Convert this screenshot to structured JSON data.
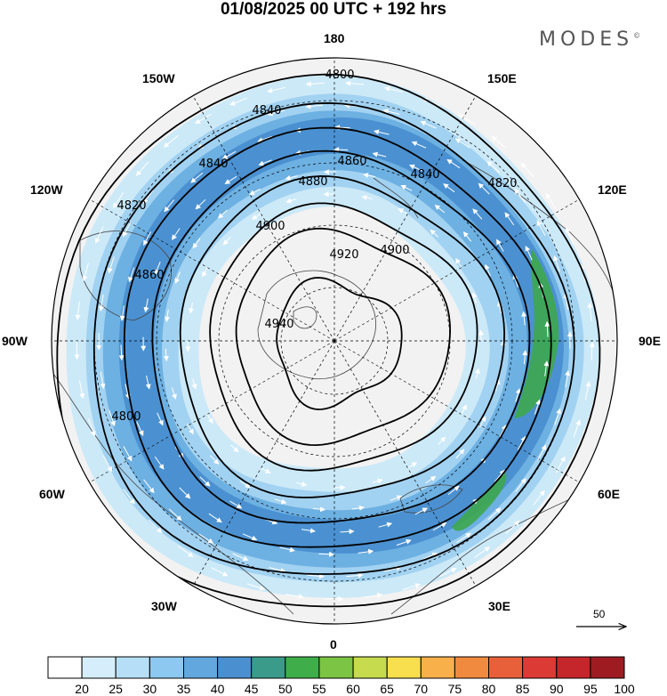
{
  "header": {
    "title": "01/08/2025  00 UTC  + 192 hrs",
    "brand": "MODES"
  },
  "map": {
    "projection": "north-polar-stereographic",
    "longitude_labels": [
      "180",
      "150E",
      "120E",
      "90E",
      "60E",
      "30E",
      "0",
      "30W",
      "60W",
      "90W",
      "120W",
      "150W"
    ],
    "contour_labels": [
      "4800",
      "4820",
      "4840",
      "4860",
      "4880",
      "4900",
      "4920",
      "4940"
    ],
    "contour_values": [
      4800,
      4820,
      4840,
      4860,
      4880,
      4900,
      4920,
      4940
    ],
    "colors": {
      "ocean_land": "#f2f2f2",
      "jet_light": "#c9e8f8",
      "jet_medium": "#9fd1f0",
      "jet_strong": "#6aaee0",
      "jet_core": "#4a8fd0",
      "jet_max": "#3da74c"
    }
  },
  "reference_vector": {
    "value": "50"
  },
  "colorbar": {
    "labels": [
      "20",
      "25",
      "30",
      "35",
      "40",
      "45",
      "50",
      "55",
      "60",
      "65",
      "70",
      "75",
      "80",
      "85",
      "90",
      "95",
      "100"
    ],
    "colors": [
      "#ffffff",
      "#d6eefb",
      "#b6dff7",
      "#8cc8ef",
      "#62a8df",
      "#4a8fd0",
      "#3a9b8a",
      "#3fae4a",
      "#7cc444",
      "#c6dc4e",
      "#f7df4e",
      "#f7b04a",
      "#f08a3e",
      "#e8603a",
      "#dc3a34",
      "#c4262c",
      "#9e1b22"
    ]
  }
}
